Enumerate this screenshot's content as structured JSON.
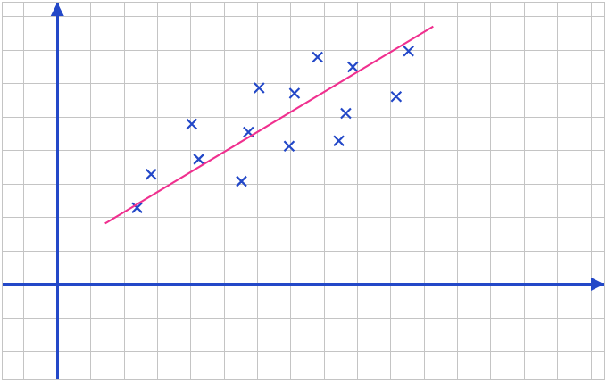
{
  "chart_data": {
    "type": "scatter",
    "grid": true,
    "tick_labels": false,
    "xlim": [
      -1.64,
      16.4
    ],
    "ylim": [
      -2.84,
      8.42
    ],
    "xticks": [
      -1,
      0,
      1,
      2,
      3,
      4,
      5,
      6,
      7,
      8,
      9,
      10,
      11,
      12,
      13,
      14,
      15,
      16
    ],
    "yticks": [
      -2,
      -1,
      0,
      1,
      2,
      3,
      4,
      5,
      6,
      7,
      8
    ],
    "series": [
      {
        "type": "scatter",
        "marker": "x",
        "color": "#2348c8",
        "x": [
          2.39,
          2.81,
          4.03,
          4.24,
          5.52,
          5.73,
          6.05,
          6.95,
          7.11,
          7.8,
          8.44,
          8.65,
          8.86,
          10.16,
          10.53
        ],
        "values": [
          2.29,
          3.29,
          4.79,
          3.74,
          3.08,
          4.55,
          5.87,
          4.13,
          5.71,
          6.79,
          4.29,
          5.11,
          6.5,
          5.61,
          6.97
        ]
      },
      {
        "type": "line",
        "line_style": "solid",
        "color": "#f0308f",
        "x": [
          1.43,
          11.27
        ],
        "values": [
          1.82,
          7.71
        ]
      }
    ]
  }
}
